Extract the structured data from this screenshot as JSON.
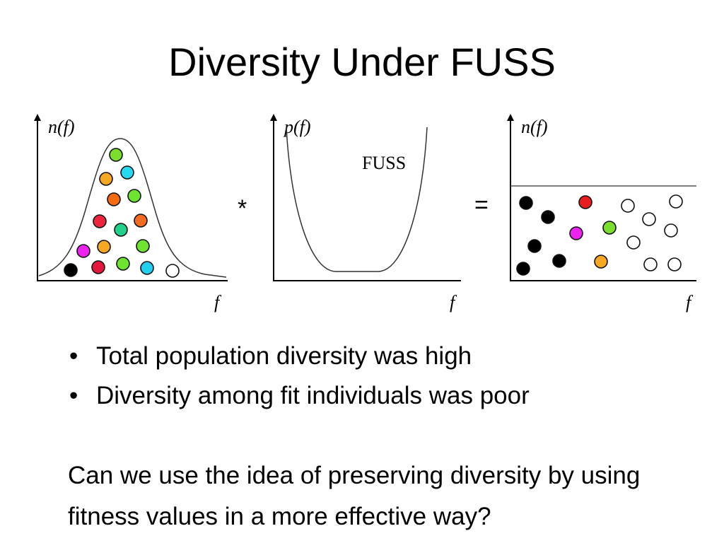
{
  "slide": {
    "title": "Diversity Under FUSS",
    "bullets": [
      "Total population diversity was high",
      "Diversity among fit individuals was poor"
    ],
    "question": "Can we use the idea of preserving diversity by using fitness values in a more effective way?"
  },
  "diagram": {
    "operators": {
      "multiply": "*",
      "equals": "="
    },
    "panels": [
      {
        "id": "initial-population",
        "y_axis_label": "n(f)",
        "x_axis_label": "f",
        "curve": "bell",
        "individuals": [
          "#7cdd2c",
          "#f7a823",
          "#26d8f0",
          "#f66a10",
          "#6ee330",
          "#f0243e",
          "#21d18b",
          "#f46a1e",
          "#f7a823",
          "#6ee330",
          "#ee22ee",
          "#000000",
          "#e3173d",
          "#6ee330",
          "#22cfee",
          "#ffffff"
        ]
      },
      {
        "id": "fuss-selection",
        "y_axis_label": "p(f)",
        "x_axis_label": "f",
        "curve": "u-shape",
        "curve_label": "FUSS"
      },
      {
        "id": "resulting-population",
        "y_axis_label": "n(f)",
        "x_axis_label": "f",
        "curve": "uniform",
        "individuals": [
          "#000000",
          "#000000",
          "#e81d1d",
          "#ffffff",
          "#ffffff",
          "#ffffff",
          "#ee22ee",
          "#7cdd2c",
          "#ffffff",
          "#ffffff",
          "#000000",
          "#000000",
          "#f7a823",
          "#ffffff",
          "#ffffff",
          "#000000"
        ]
      }
    ]
  }
}
